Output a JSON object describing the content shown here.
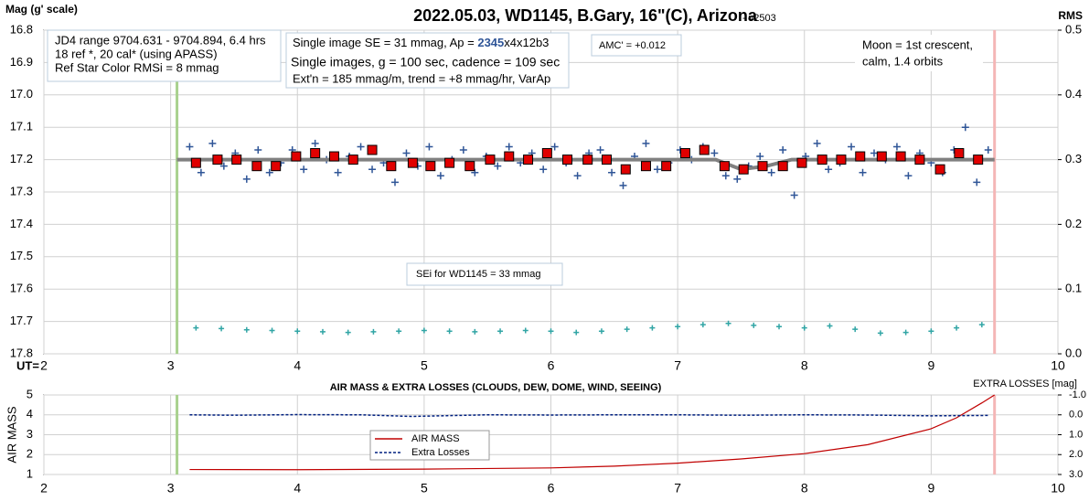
{
  "chart_data": [
    {
      "type": "scatter",
      "title": "2022.05.03, WD1145, B.Gary, 16\"(C), Arizona",
      "subtitle": " - v2503",
      "y_label": "Mag (g' scale)",
      "y2_label": "RMS",
      "x_label": "UT=",
      "xlim": [
        2,
        10
      ],
      "xticks": [
        2,
        3,
        4,
        5,
        6,
        7,
        8,
        9,
        10
      ],
      "ylim": [
        17.8,
        16.8
      ],
      "yticks": [
        16.8,
        16.9,
        {
          "value": 17,
          "label": "17.0"
        },
        17.1,
        17.2,
        17.3,
        17.4,
        17.5,
        17.6,
        17.7,
        17.8
      ],
      "y2lim": [
        0,
        0.5
      ],
      "y2ticks": [
        {
          "value": 0,
          "label": "0.0"
        },
        0.1,
        0.2,
        0.3,
        0.4,
        0.5
      ],
      "grid": true,
      "vlines": [
        {
          "x": 3.05,
          "color": "#a9d18e"
        },
        {
          "x": 9.5,
          "color": "#f4b6b6"
        }
      ],
      "annotations": [
        [
          "JD4 range 9704.631 - 9704.894, 6.4 hrs",
          "18 ref *, 20 cal* (using APASS)",
          "Ref Star Color RMSi = 8 mmag"
        ],
        [
          "Single image SE = 31 mmag, Ap = ",
          "2345",
          "x4x12b3",
          "Single images, g = 100 sec, cadence = 109 sec",
          "Ext'n = 185 mmag/m, trend = +8 mmag/hr, VarAp"
        ],
        [
          "AMC' = +0.012"
        ],
        [
          "Moon = 1st crescent,",
          "calm,  1.4 orbits"
        ],
        [
          "SEi for WD1145 = 33 mmag"
        ]
      ],
      "series": [
        {
          "marker": "plus",
          "color": "#2f5597",
          "x": [
            3.15,
            3.24,
            3.33,
            3.42,
            3.51,
            3.6,
            3.69,
            3.78,
            3.87,
            3.96,
            4.05,
            4.14,
            4.23,
            4.32,
            4.41,
            4.5,
            4.59,
            4.68,
            4.77,
            4.86,
            4.95,
            5.04,
            5.13,
            5.22,
            5.31,
            5.4,
            5.49,
            5.58,
            5.67,
            5.76,
            5.85,
            5.94,
            6.03,
            6.12,
            6.21,
            6.3,
            6.39,
            6.48,
            6.57,
            6.66,
            6.75,
            6.84,
            6.93,
            7.02,
            7.11,
            7.2,
            7.29,
            7.38,
            7.47,
            7.56,
            7.65,
            7.74,
            7.83,
            7.92,
            8.01,
            8.1,
            8.19,
            8.28,
            8.37,
            8.46,
            8.55,
            8.64,
            8.73,
            8.82,
            8.91,
            9.0,
            9.09,
            9.18,
            9.27,
            9.36,
            9.45
          ],
          "values": [
            17.16,
            17.24,
            17.15,
            17.22,
            17.18,
            17.26,
            17.17,
            17.24,
            17.21,
            17.17,
            17.23,
            17.15,
            17.2,
            17.24,
            17.19,
            17.16,
            17.23,
            17.21,
            17.27,
            17.18,
            17.22,
            17.16,
            17.25,
            17.2,
            17.17,
            17.24,
            17.19,
            17.22,
            17.16,
            17.21,
            17.18,
            17.23,
            17.16,
            17.21,
            17.25,
            17.18,
            17.17,
            17.24,
            17.28,
            17.19,
            17.15,
            17.23,
            17.21,
            17.17,
            17.2,
            17.16,
            17.18,
            17.25,
            17.26,
            17.22,
            17.19,
            17.24,
            17.17,
            17.31,
            17.19,
            17.15,
            17.23,
            17.21,
            17.16,
            17.24,
            17.18,
            17.2,
            17.16,
            17.25,
            17.18,
            17.21,
            17.24,
            17.17,
            17.1,
            17.27,
            17.17
          ]
        },
        {
          "marker": "line",
          "color": "#808080",
          "x": [
            3.05,
            7.3,
            7.5,
            7.7,
            7.9,
            9.5
          ],
          "values": [
            17.2,
            17.2,
            17.23,
            17.22,
            17.2,
            17.2
          ]
        },
        {
          "marker": "square",
          "color": "#e00000",
          "x": [
            3.2,
            3.37,
            3.52,
            3.68,
            3.83,
            3.99,
            4.14,
            4.29,
            4.44,
            4.59,
            4.74,
            4.91,
            5.05,
            5.2,
            5.36,
            5.52,
            5.67,
            5.82,
            5.97,
            6.13,
            6.29,
            6.44,
            6.59,
            6.75,
            6.91,
            7.06,
            7.21,
            7.37,
            7.52,
            7.67,
            7.83,
            7.98,
            8.14,
            8.29,
            8.44,
            8.61,
            8.76,
            8.91,
            9.07,
            9.22,
            9.37
          ],
          "values": [
            17.21,
            17.2,
            17.2,
            17.22,
            17.22,
            17.19,
            17.18,
            17.19,
            17.2,
            17.17,
            17.22,
            17.21,
            17.22,
            17.21,
            17.22,
            17.2,
            17.19,
            17.2,
            17.18,
            17.2,
            17.2,
            17.2,
            17.23,
            17.22,
            17.22,
            17.18,
            17.17,
            17.22,
            17.23,
            17.22,
            17.22,
            17.21,
            17.2,
            17.2,
            17.19,
            17.19,
            17.19,
            17.2,
            17.23,
            17.18,
            17.2
          ]
        },
        {
          "marker": "plus",
          "color": "#31a5a5",
          "axis": "y2",
          "x": [
            3.2,
            3.4,
            3.6,
            3.8,
            4.0,
            4.2,
            4.4,
            4.6,
            4.8,
            5.0,
            5.2,
            5.4,
            5.6,
            5.8,
            6.0,
            6.2,
            6.4,
            6.6,
            6.8,
            7.0,
            7.2,
            7.4,
            7.6,
            7.8,
            8.0,
            8.2,
            8.4,
            8.6,
            8.8,
            9.0,
            9.2,
            9.4
          ],
          "values": [
            0.04,
            0.039,
            0.037,
            0.036,
            0.035,
            0.034,
            0.033,
            0.034,
            0.035,
            0.036,
            0.035,
            0.034,
            0.035,
            0.036,
            0.035,
            0.033,
            0.035,
            0.038,
            0.04,
            0.042,
            0.045,
            0.047,
            0.044,
            0.042,
            0.04,
            0.043,
            0.038,
            0.032,
            0.033,
            0.035,
            0.04,
            0.045
          ]
        }
      ]
    },
    {
      "type": "line",
      "title": "AIR MASS & EXTRA LOSSES (CLOUDS, DEW, DOME, WIND, SEEING)",
      "y_label": "AIR MASS",
      "y2_label": "EXTRA LOSSES [mag]",
      "xlim": [
        2,
        10
      ],
      "xticks": [
        2,
        3,
        4,
        5,
        6,
        7,
        8,
        9,
        10
      ],
      "ylim": [
        1,
        5
      ],
      "yticks": [
        1,
        2,
        3,
        4,
        5
      ],
      "y2lim": [
        3,
        -1
      ],
      "y2ticks": [
        {
          "value": -1,
          "label": "-1.0"
        },
        {
          "value": 0,
          "label": "0.0"
        },
        {
          "value": 1,
          "label": "1.0"
        },
        {
          "value": 2,
          "label": "2.0"
        },
        {
          "value": 3,
          "label": "3.0"
        }
      ],
      "grid": true,
      "vlines": [
        {
          "x": 3.05,
          "color": "#a9d18e"
        },
        {
          "x": 9.5,
          "color": "#f4b6b6"
        }
      ],
      "series": [
        {
          "name": "AIR MASS",
          "color": "#c00000",
          "marker": "line",
          "x": [
            3.15,
            4,
            5,
            6,
            6.5,
            7,
            7.5,
            8,
            8.5,
            9,
            9.2,
            9.4,
            9.5
          ],
          "values": [
            1.25,
            1.24,
            1.27,
            1.33,
            1.42,
            1.57,
            1.78,
            2.05,
            2.5,
            3.3,
            3.85,
            4.6,
            5.0
          ]
        },
        {
          "name": "Extra Losses",
          "color": "#002080",
          "marker": "dashed",
          "axis": "y2",
          "x": [
            3.15,
            3.5,
            4,
            4.5,
            4.9,
            5.5,
            6,
            6.5,
            7,
            7.5,
            8,
            8.5,
            9,
            9.45
          ],
          "values": [
            0.0,
            0.02,
            -0.01,
            0.0,
            0.08,
            0.0,
            0.01,
            0.0,
            0.0,
            0.02,
            0.0,
            0.01,
            0.05,
            0.03
          ]
        }
      ]
    }
  ]
}
